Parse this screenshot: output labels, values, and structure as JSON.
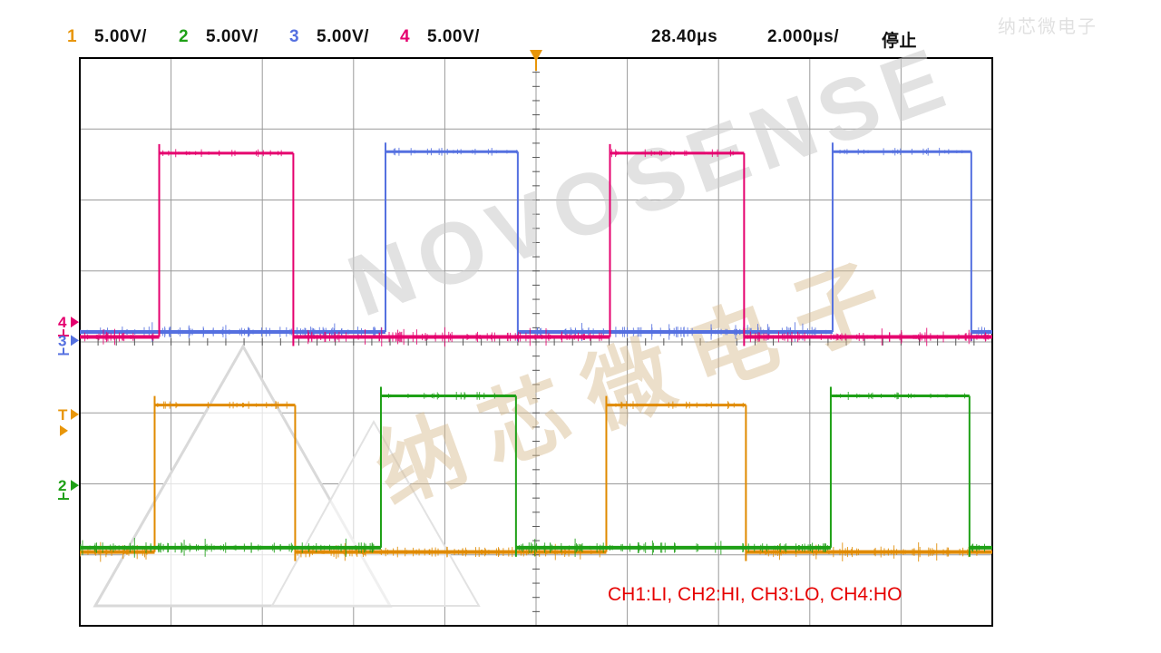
{
  "header": {
    "channels": [
      {
        "num": "1",
        "scale": "5.00V/",
        "color": "#e8960a"
      },
      {
        "num": "2",
        "scale": "5.00V/",
        "color": "#1ea016"
      },
      {
        "num": "3",
        "scale": "5.00V/",
        "color": "#5570e0"
      },
      {
        "num": "4",
        "scale": "5.00V/",
        "color": "#e5006e"
      }
    ],
    "delay": "28.40μs",
    "timebase": "2.000μs/",
    "run_state": "停止"
  },
  "annotation": "CH1:LI, CH2:HI, CH3:LO, CH4:HO",
  "watermark": {
    "line1": "NOVOSENSE",
    "line2": "纳芯微电子"
  },
  "trigger": {
    "x_div": 5.0,
    "color": "#e8960a"
  },
  "markers": [
    {
      "label": "4",
      "color": "#e5006e",
      "y_div": 3.72,
      "style": "ground"
    },
    {
      "label": "3",
      "color": "#5570e0",
      "y_div": 3.98,
      "style": "ground"
    },
    {
      "label": "T",
      "color": "#e8960a",
      "y_div": 5.02,
      "style": "trigger"
    },
    {
      "label": "2",
      "color": "#1ea016",
      "y_div": 6.02,
      "style": "ground"
    }
  ],
  "chart_data": {
    "type": "line",
    "title": "Half-bridge gate driver input/output waveforms",
    "x_divisions": 10,
    "y_divisions": 8,
    "timebase_us_per_div": 2.0,
    "delay_us": 28.4,
    "volts_per_div": 5.0,
    "period_us": 10.0,
    "pulse_width_us": 2.95,
    "series": [
      {
        "name": "CH3 LO",
        "color": "#5570e0",
        "baseline_div": 3.86,
        "high_div": 1.32,
        "amplitude_V": 12.7,
        "pulses_div": [
          [
            3.35,
            4.8
          ],
          [
            8.25,
            9.77
          ]
        ]
      },
      {
        "name": "CH4 HO",
        "color": "#e5006e",
        "baseline_div": 3.93,
        "high_div": 1.34,
        "amplitude_V": 12.9,
        "pulses_div": [
          [
            0.87,
            2.34
          ],
          [
            5.81,
            7.28
          ]
        ]
      },
      {
        "name": "CH1 LI",
        "color": "#e08a00",
        "baseline_div": 6.96,
        "high_div": 4.89,
        "amplitude_V": 10.4,
        "pulses_div": [
          [
            0.82,
            2.36
          ],
          [
            5.77,
            7.3
          ]
        ]
      },
      {
        "name": "CH2 HI",
        "color": "#1ea016",
        "baseline_div": 6.9,
        "high_div": 4.76,
        "amplitude_V": 10.7,
        "pulses_div": [
          [
            3.3,
            4.78
          ],
          [
            8.23,
            9.75
          ]
        ]
      }
    ]
  }
}
